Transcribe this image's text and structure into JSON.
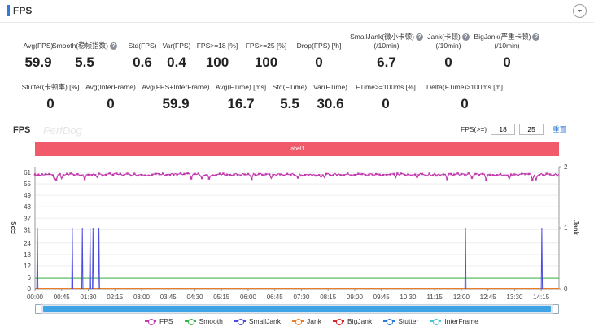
{
  "header": {
    "title": "FPS"
  },
  "metrics_row1": [
    {
      "label": "Avg(FPS)",
      "value": "59.9",
      "help": false
    },
    {
      "label": "Smooth(稳帧指数)",
      "value": "5.5",
      "help": true
    },
    {
      "label": "Std(FPS)",
      "value": "0.6",
      "help": false
    },
    {
      "label": "Var(FPS)",
      "value": "0.4",
      "help": false
    },
    {
      "label": "FPS>=18 [%]",
      "value": "100",
      "help": false
    },
    {
      "label": "FPS>=25 [%]",
      "value": "100",
      "help": false
    },
    {
      "label": "Drop(FPS) [/h]",
      "value": "0",
      "help": false
    },
    {
      "label": "SmallJank(微小卡顿)",
      "label2": "(/10min)",
      "value": "6.7",
      "help": true
    },
    {
      "label": "Jank(卡顿)",
      "label2": "(/10min)",
      "value": "0",
      "help": true
    },
    {
      "label": "BigJank(严重卡顿)",
      "label2": "(/10min)",
      "value": "0",
      "help": true
    }
  ],
  "metrics_row2": [
    {
      "label": "Stutter(卡顿率) [%]",
      "value": "0"
    },
    {
      "label": "Avg(InterFrame)",
      "value": "0"
    },
    {
      "label": "Avg(FPS+InterFrame)",
      "value": "59.9"
    },
    {
      "label": "Avg(FTime) [ms]",
      "value": "16.7"
    },
    {
      "label": "Std(FTime)",
      "value": "5.5"
    },
    {
      "label": "Var(FTime)",
      "value": "30.6"
    },
    {
      "label": "FTime>=100ms [%]",
      "value": "0"
    },
    {
      "label": "Delta(FTime)>100ms [/h]",
      "value": "0"
    }
  ],
  "chart_header": {
    "title": "FPS",
    "watermark": "PerfDog",
    "filter_label": "FPS(>=)",
    "filter_low": "18",
    "filter_high": "25",
    "reset_label": "重置"
  },
  "label_band": "label1",
  "chart_data": {
    "type": "line",
    "ylabel": "FPS",
    "y2label": "Jank",
    "y_ticks": [
      0,
      6,
      12,
      18,
      24,
      31,
      37,
      43,
      49,
      55,
      61
    ],
    "y2_ticks": [
      0,
      1,
      2
    ],
    "x_ticks": [
      "00:00",
      "00:45",
      "01:30",
      "02:15",
      "03:00",
      "03:45",
      "04:30",
      "05:15",
      "06:00",
      "06:45",
      "07:30",
      "08:15",
      "09:00",
      "09:45",
      "10:30",
      "11:15",
      "12:00",
      "12:45",
      "13:30",
      "14:15"
    ],
    "x_range_seconds": [
      0,
      885
    ],
    "series": [
      {
        "name": "FPS",
        "color": "#c23bae",
        "approx_value": 59.9,
        "range": [
          57,
          61
        ]
      },
      {
        "name": "Smooth",
        "color": "#3cb44b",
        "approx_value": 5.5
      },
      {
        "name": "SmallJank",
        "color": "#4b4be0",
        "spike_times_seconds": [
          4,
          63,
          80,
          93,
          98,
          108,
          727,
          856
        ],
        "spike_value": 1
      },
      {
        "name": "Jank",
        "color": "#f07c21",
        "approx_value": 0
      },
      {
        "name": "BigJank",
        "color": "#d62728",
        "approx_value": 0
      },
      {
        "name": "Stutter",
        "color": "#2f7bd6",
        "approx_value": 0
      },
      {
        "name": "InterFrame",
        "color": "#3fc8d8",
        "approx_value": 0
      }
    ]
  },
  "colors": {
    "accent": "#2f7bd6",
    "label_band": "#f05a6a",
    "slider": "#3fa3e6"
  }
}
